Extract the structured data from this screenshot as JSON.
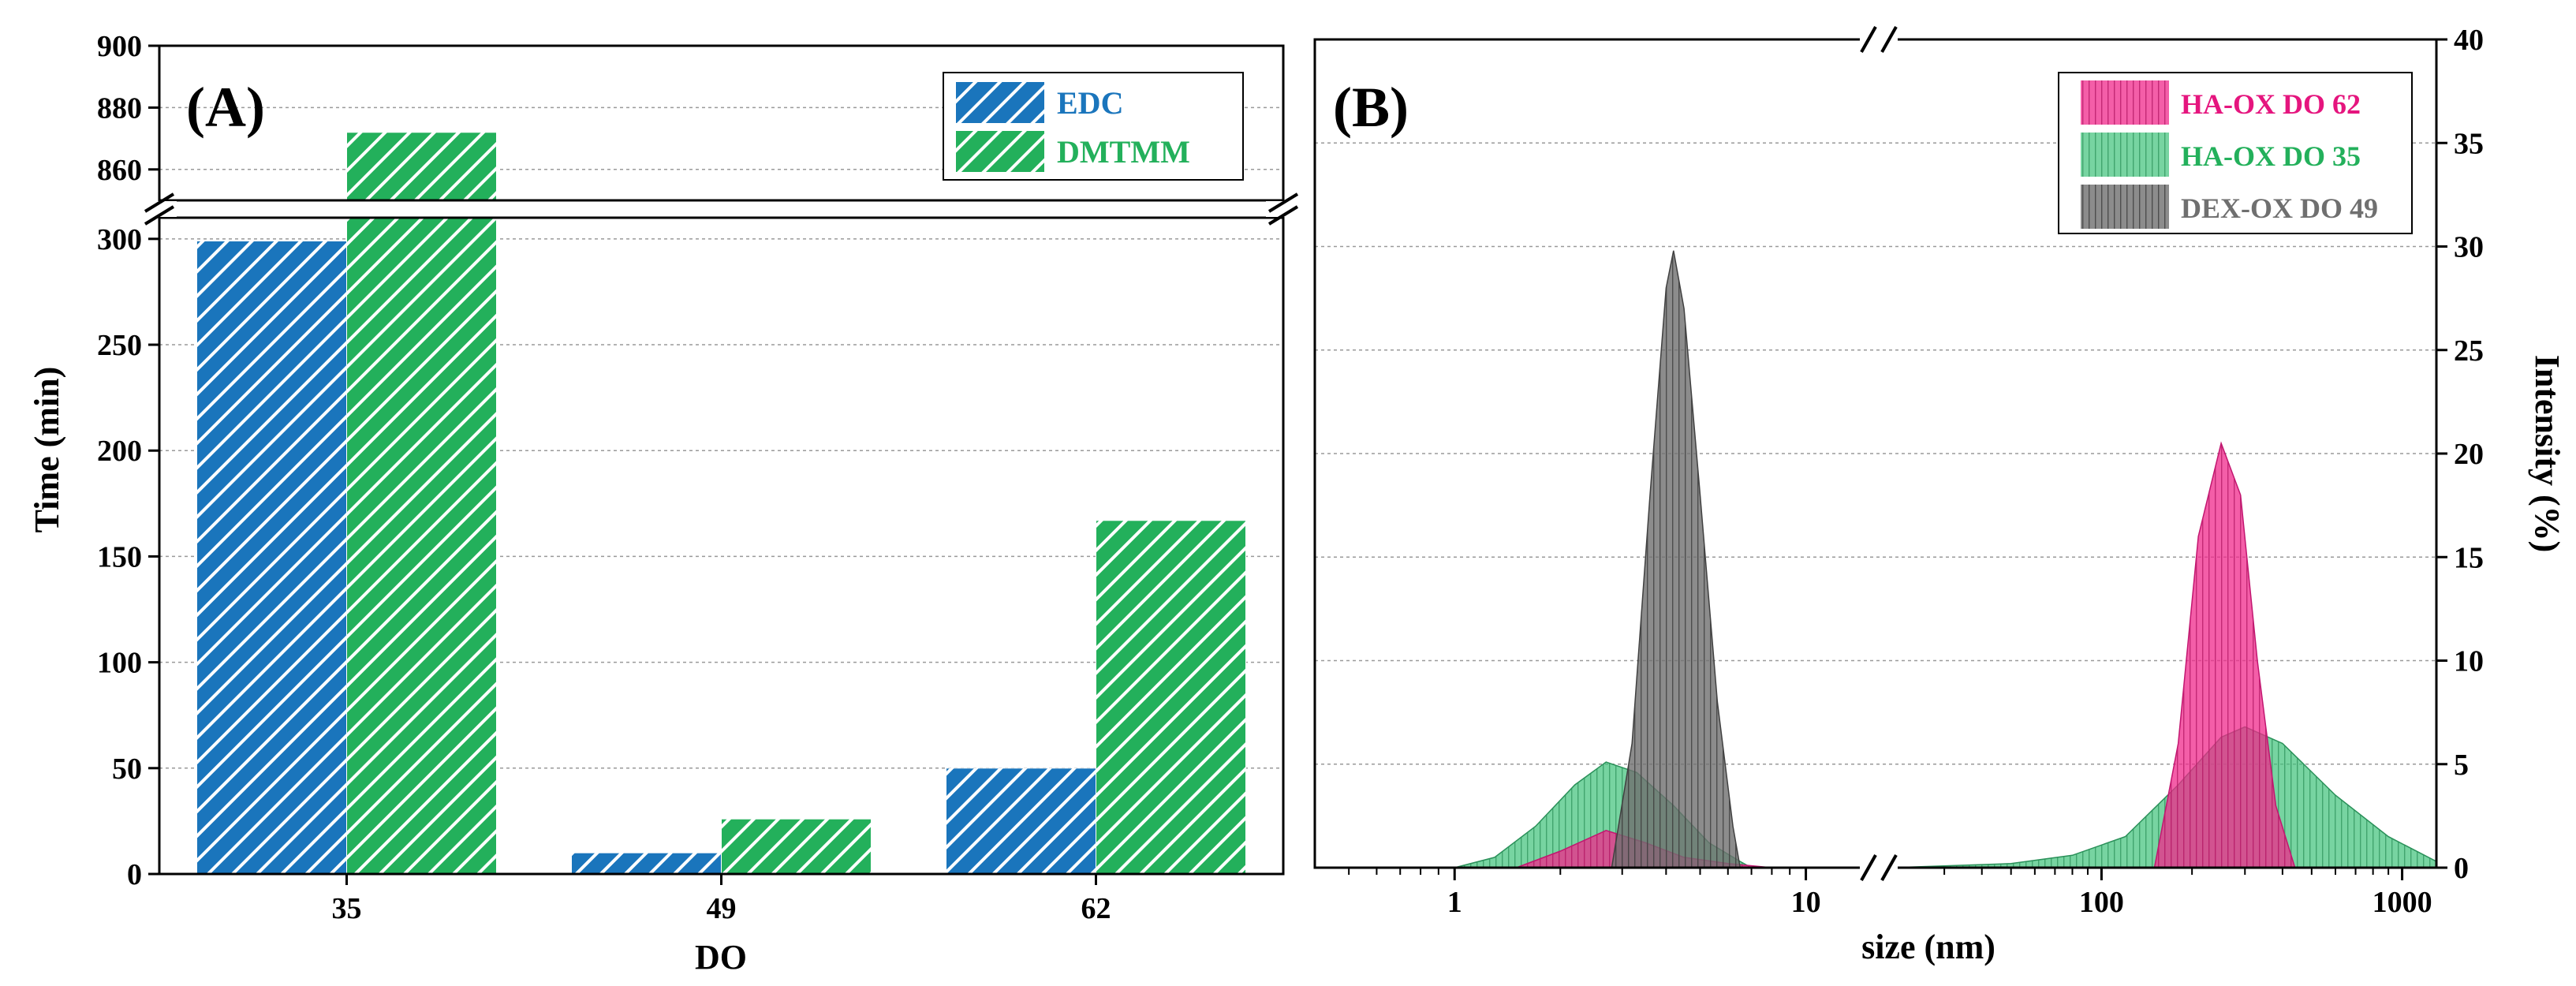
{
  "chart_data": [
    {
      "panel_label": "(A)",
      "type": "bar",
      "xlabel": "DO",
      "ylabel": "Time (min)",
      "categories": [
        "35",
        "49",
        "62"
      ],
      "series": [
        {
          "name": "EDC",
          "values": [
            299,
            10,
            50
          ],
          "color": "#1a75bc"
        },
        {
          "name": "DMTMM",
          "values": [
            872,
            26,
            167
          ],
          "color": "#23b05b"
        }
      ],
      "y_axis_break": {
        "lower_range": [
          0,
          310
        ],
        "upper_range": [
          850,
          900
        ]
      },
      "yticks_lower": [
        "0",
        "50",
        "100",
        "150",
        "200",
        "250",
        "300"
      ],
      "yticks_upper": [
        "860",
        "880",
        "900"
      ],
      "legend_position": "top-right",
      "grid": true
    },
    {
      "panel_label": "(B)",
      "type": "area",
      "xlabel": "size (nm)",
      "ylabel": "Intensity (%)",
      "x_scale": "log",
      "x_axis_break": [
        15,
        20
      ],
      "xlim": [
        0.4,
        1300
      ],
      "ylim": [
        0,
        40
      ],
      "xticks": [
        "1",
        "10",
        "100",
        "1000"
      ],
      "yticks": [
        "0",
        "5",
        "10",
        "15",
        "20",
        "25",
        "30",
        "35",
        "40"
      ],
      "legend_position": "top-right",
      "grid": true,
      "series": [
        {
          "name": "HA-OX DO 62",
          "color": "#f0288a",
          "x": [
            1.5,
            2.0,
            2.7,
            3.5,
            4.5,
            6.0,
            8.0,
            150,
            180,
            210,
            250,
            290,
            330,
            380,
            440
          ],
          "y": [
            0,
            0.8,
            1.8,
            1.2,
            0.5,
            0.2,
            0,
            0,
            6,
            16,
            20.5,
            18,
            10,
            3,
            0
          ]
        },
        {
          "name": "HA-OX DO 35",
          "color": "#3ec27a",
          "x": [
            1.0,
            1.3,
            1.7,
            2.2,
            2.7,
            3.3,
            4.2,
            5.3,
            6.5,
            7.0,
            20,
            50,
            80,
            120,
            180,
            250,
            300,
            400,
            600,
            900,
            1300
          ],
          "y": [
            0,
            0.5,
            2,
            4,
            5.1,
            4.6,
            3,
            1.2,
            0.3,
            0,
            0,
            0.2,
            0.6,
            1.5,
            4,
            6.3,
            6.8,
            6,
            3.5,
            1.5,
            0.3
          ]
        },
        {
          "name": "DEX-OX DO 49",
          "color": "#707070",
          "x": [
            2.8,
            3.2,
            3.6,
            4.0,
            4.2,
            4.5,
            5.0,
            5.6,
            6.2,
            6.5
          ],
          "y": [
            0,
            6,
            18,
            28,
            29.8,
            27,
            18,
            8,
            2,
            0
          ]
        }
      ]
    }
  ]
}
